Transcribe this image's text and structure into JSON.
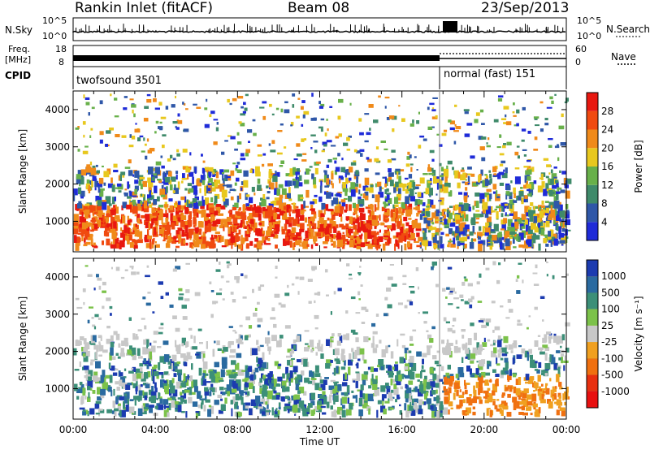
{
  "header": {
    "station": "Rankin Inlet (fitACF)",
    "beam": "Beam 08",
    "date": "23/Sep/2013"
  },
  "labels": {
    "nsky": "N.Sky",
    "nsky_top": "10^5",
    "nsky_bottom": "10^0",
    "nsearch": "N.Search",
    "nsearch_top": "10^5",
    "nsearch_bottom": "10^0",
    "freq": "Freq.",
    "freq_unit": "[MHz]",
    "freq_top": "18",
    "freq_bottom": "8",
    "nave": "Nave",
    "nave_top": "60",
    "nave_bottom": "0",
    "cpid": "CPID",
    "mode1": "twofsound 3501",
    "mode2": "normal (fast) 151"
  },
  "chart_data": [
    {
      "type": "heatmap",
      "name": "power",
      "ylabel": "Slant Range [km]",
      "ylim": [
        180,
        4500
      ],
      "yticks": [
        "1000",
        "2000",
        "3000",
        "4000"
      ],
      "xlim": [
        0,
        24
      ],
      "colorbar": {
        "label": "Power [dB]",
        "ticks": [
          "4",
          "8",
          "12",
          "16",
          "20",
          "24",
          "28"
        ],
        "colors": [
          "#1f2bd8",
          "#2f57a8",
          "#3f8a6a",
          "#68b04a",
          "#e8c81e",
          "#f08a1a",
          "#f04a10",
          "#e81810"
        ]
      }
    },
    {
      "type": "heatmap",
      "name": "velocity",
      "ylabel": "Slant Range [km]",
      "ylim": [
        180,
        4500
      ],
      "yticks": [
        "1000",
        "2000",
        "3000",
        "4000"
      ],
      "xlim": [
        0,
        24
      ],
      "xticks": [
        "00:00",
        "04:00",
        "08:00",
        "12:00",
        "16:00",
        "20:00",
        "00:00"
      ],
      "xlabel": "Time UT",
      "colorbar": {
        "label": "Velocity [m s⁻¹]",
        "ticks": [
          "1000",
          "500",
          "100",
          "25",
          "-25",
          "-100",
          "-500",
          "-1000"
        ],
        "colors": [
          "#1c3bb0",
          "#2a6aa0",
          "#3c8f78",
          "#7cc24a",
          "#c8c8c8",
          "#f0a020",
          "#f07010",
          "#e83010",
          "#e81010"
        ]
      }
    }
  ]
}
